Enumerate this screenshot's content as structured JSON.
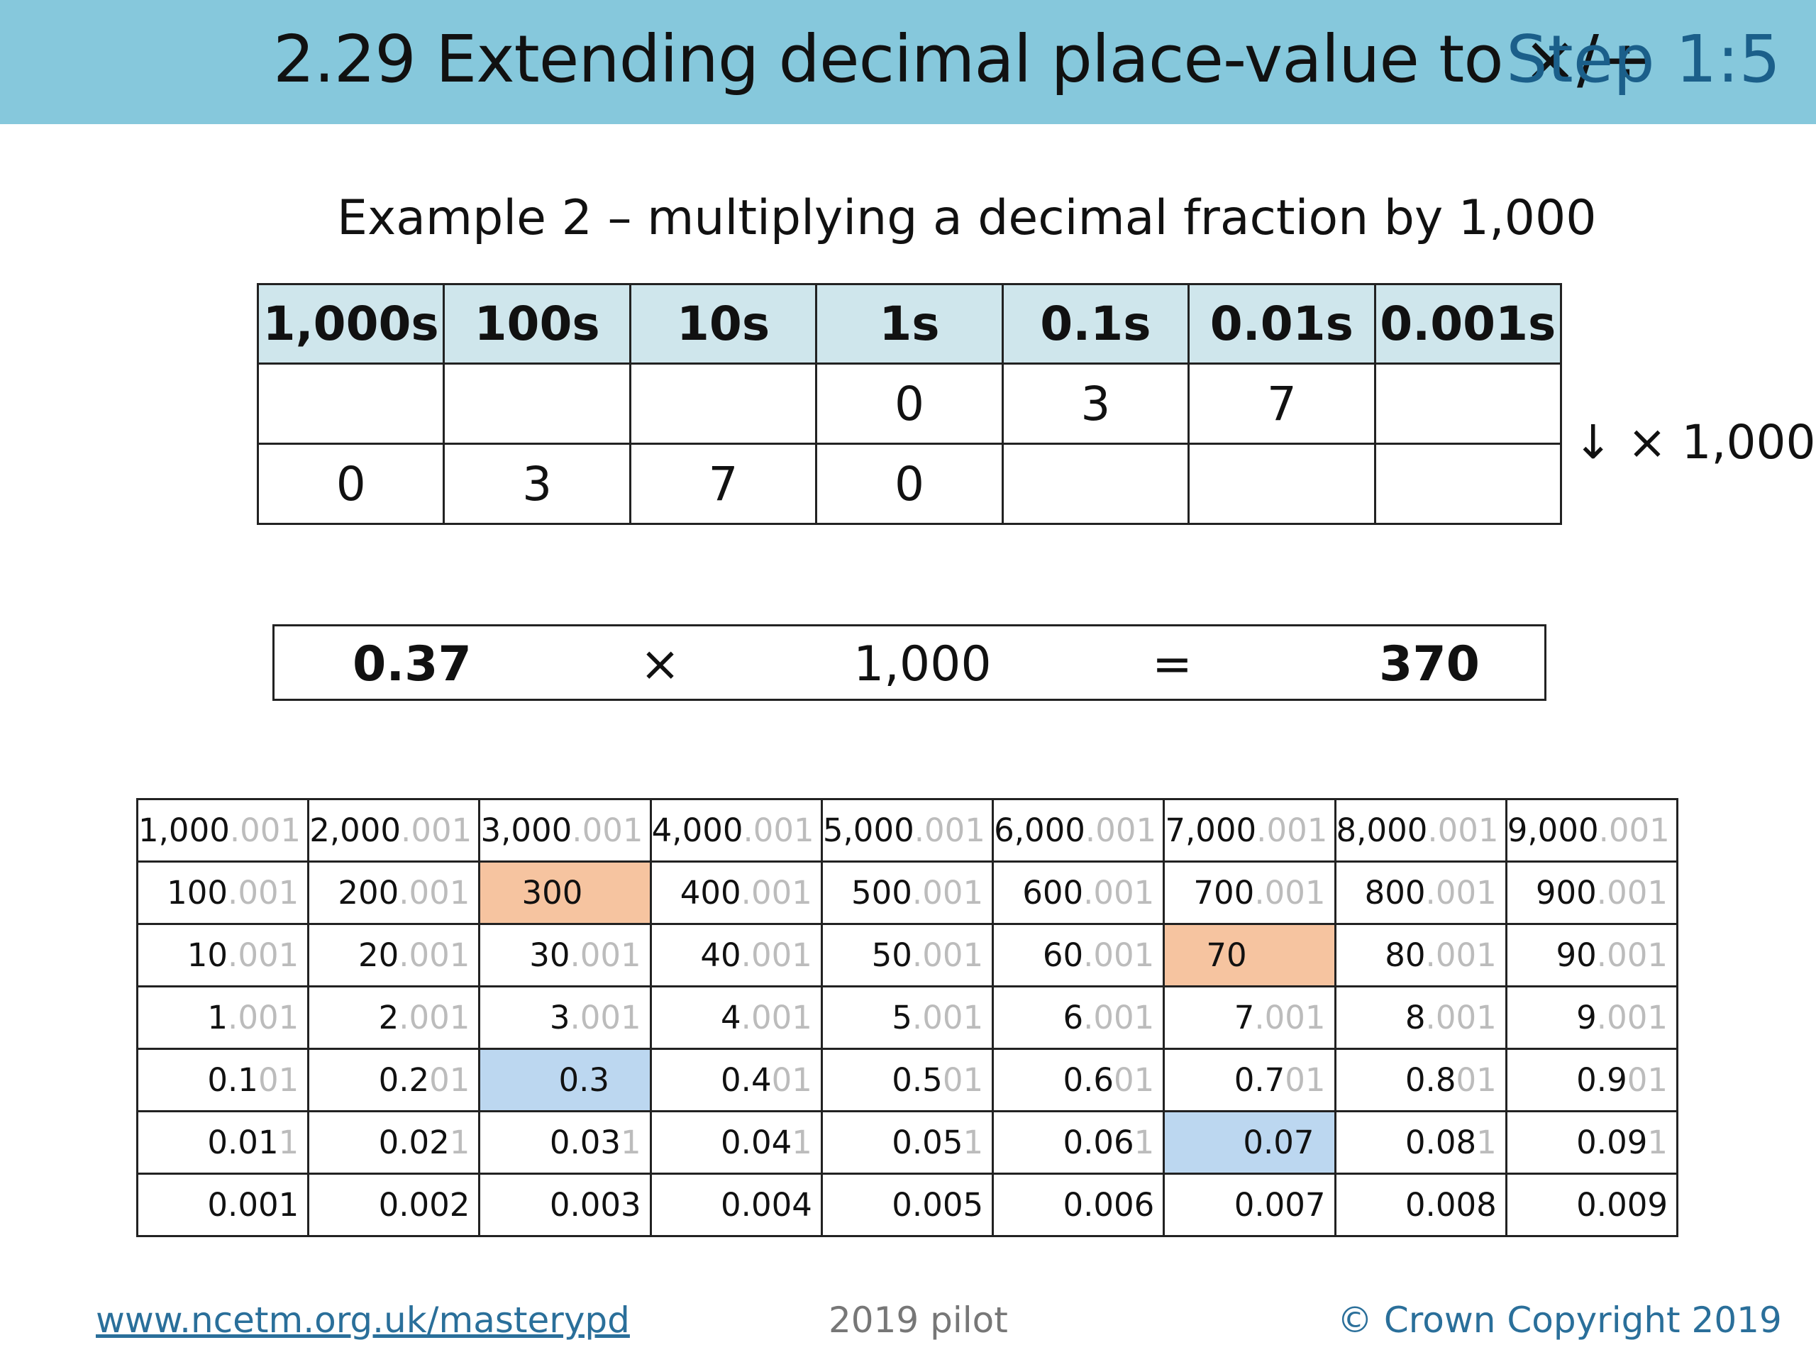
{
  "header": {
    "title": "2.29 Extending decimal place-value to ×/÷",
    "step": "Step 1:5"
  },
  "subtitle": "Example 2 – multiplying a decimal fraction by 1,000",
  "place_value_table": {
    "headers": [
      "1,000s",
      "100s",
      "10s",
      "1s",
      "0.1s",
      "0.01s",
      "0.001s"
    ],
    "rows": [
      [
        "",
        "",
        "",
        "0",
        "3",
        "7",
        ""
      ],
      [
        "0",
        "3",
        "7",
        "0",
        "",
        "",
        ""
      ]
    ],
    "note": "↓ × 1,000"
  },
  "equation": {
    "a": "0.37",
    "op": "×",
    "b": "1,000",
    "eq": "=",
    "result": "370"
  },
  "number_grid": {
    "rows": [
      [
        [
          "1,000",
          ".001"
        ],
        [
          "2,000",
          ".001"
        ],
        [
          "3,000",
          ".001"
        ],
        [
          "4,000",
          ".001"
        ],
        [
          "5,000",
          ".001"
        ],
        [
          "6,000",
          ".001"
        ],
        [
          "7,000",
          ".001"
        ],
        [
          "8,000",
          ".001"
        ],
        [
          "9,000",
          ".001"
        ]
      ],
      [
        [
          "100",
          ".001"
        ],
        [
          "200",
          ".001"
        ],
        [
          "300",
          ""
        ],
        [
          "400",
          ".001"
        ],
        [
          "500",
          ".001"
        ],
        [
          "600",
          ".001"
        ],
        [
          "700",
          ".001"
        ],
        [
          "800",
          ".001"
        ],
        [
          "900",
          ".001"
        ]
      ],
      [
        [
          "10",
          ".001"
        ],
        [
          "20",
          ".001"
        ],
        [
          "30",
          ".001"
        ],
        [
          "40",
          ".001"
        ],
        [
          "50",
          ".001"
        ],
        [
          "60",
          ".001"
        ],
        [
          "70",
          ""
        ],
        [
          "80",
          ".001"
        ],
        [
          "90",
          ".001"
        ]
      ],
      [
        [
          "1",
          ".001"
        ],
        [
          "2",
          ".001"
        ],
        [
          "3",
          ".001"
        ],
        [
          "4",
          ".001"
        ],
        [
          "5",
          ".001"
        ],
        [
          "6",
          ".001"
        ],
        [
          "7",
          ".001"
        ],
        [
          "8",
          ".001"
        ],
        [
          "9",
          ".001"
        ]
      ],
      [
        [
          "0.1",
          "01"
        ],
        [
          "0.2",
          "01"
        ],
        [
          "0.3",
          ""
        ],
        [
          "0.4",
          "01"
        ],
        [
          "0.5",
          "01"
        ],
        [
          "0.6",
          "01"
        ],
        [
          "0.7",
          "01"
        ],
        [
          "0.8",
          "01"
        ],
        [
          "0.9",
          "01"
        ]
      ],
      [
        [
          "0.01",
          "1"
        ],
        [
          "0.02",
          "1"
        ],
        [
          "0.03",
          "1"
        ],
        [
          "0.04",
          "1"
        ],
        [
          "0.05",
          "1"
        ],
        [
          "0.06",
          "1"
        ],
        [
          "0.07",
          ""
        ],
        [
          "0.08",
          "1"
        ],
        [
          "0.09",
          "1"
        ]
      ],
      [
        [
          "0.001",
          ""
        ],
        [
          "0.002",
          ""
        ],
        [
          "0.003",
          ""
        ],
        [
          "0.004",
          ""
        ],
        [
          "0.005",
          ""
        ],
        [
          "0.006",
          ""
        ],
        [
          "0.007",
          ""
        ],
        [
          "0.008",
          ""
        ],
        [
          "0.009",
          ""
        ]
      ]
    ],
    "highlights": [
      {
        "row": 1,
        "col": 2,
        "color": "orange"
      },
      {
        "row": 2,
        "col": 6,
        "color": "orange"
      },
      {
        "row": 4,
        "col": 2,
        "color": "blue"
      },
      {
        "row": 5,
        "col": 6,
        "color": "blue"
      }
    ]
  },
  "footer": {
    "link": "www.ncetm.org.uk/masterypd",
    "middle": "2019 pilot",
    "copyright": "© Crown Copyright 2019"
  },
  "colors": {
    "header_bg": "#86c8dc",
    "step_text": "#1b5f8a",
    "table_header_bg": "#cfe6ec",
    "highlight_orange": "#f6c4a0",
    "highlight_blue": "#bcd7f0"
  }
}
